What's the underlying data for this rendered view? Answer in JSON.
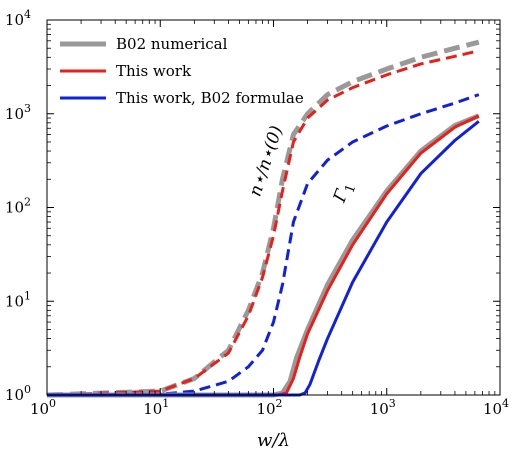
{
  "chart_data": {
    "type": "line",
    "xscale": "log",
    "yscale": "log",
    "xlim": [
      1,
      10000
    ],
    "ylim": [
      1,
      10000
    ],
    "xlabel": "w/λ",
    "ylabel": "",
    "grid": false,
    "legend_position": "top-left",
    "x_ticks": [
      {
        "value": 1,
        "base": "10",
        "exp": "0"
      },
      {
        "value": 10,
        "base": "10",
        "exp": "1"
      },
      {
        "value": 100,
        "base": "10",
        "exp": "2"
      },
      {
        "value": 1000,
        "base": "10",
        "exp": "3"
      },
      {
        "value": 10000,
        "base": "10",
        "exp": "4"
      }
    ],
    "y_ticks": [
      {
        "value": 1,
        "base": "10",
        "exp": "0"
      },
      {
        "value": 10,
        "base": "10",
        "exp": "1"
      },
      {
        "value": 100,
        "base": "10",
        "exp": "2"
      },
      {
        "value": 1000,
        "base": "10",
        "exp": "3"
      },
      {
        "value": 10000,
        "base": "10",
        "exp": "4"
      }
    ],
    "annotations": [
      {
        "text": "n⋆/n⋆(0)",
        "x": 95,
        "y": 300,
        "angle": -72
      },
      {
        "text": "Γ1",
        "x": 450,
        "y": 140,
        "angle": -70
      }
    ],
    "series": [
      {
        "name": "B02 numerical",
        "group": "n_star",
        "color": "#999999",
        "style": "dashed",
        "width": 5,
        "x": [
          1,
          10,
          20,
          40,
          60,
          80,
          100,
          120,
          150,
          200,
          300,
          500,
          1000,
          2000,
          4000,
          6500
        ],
        "y": [
          1,
          1.1,
          1.5,
          3,
          8,
          20,
          60,
          200,
          600,
          1000,
          1600,
          2200,
          3000,
          4000,
          5000,
          5800
        ]
      },
      {
        "name": "This work",
        "group": "n_star",
        "color": "#e8201a",
        "style": "dashed",
        "width": 3,
        "x": [
          1,
          10,
          20,
          40,
          60,
          80,
          100,
          120,
          150,
          200,
          300,
          500,
          1000,
          2000,
          4000,
          6500
        ],
        "y": [
          1,
          1.1,
          1.5,
          2.8,
          7,
          18,
          50,
          150,
          500,
          900,
          1400,
          1900,
          2600,
          3400,
          4100,
          4700
        ]
      },
      {
        "name": "This work, B02 formulae",
        "group": "n_star",
        "color": "#1020dd",
        "style": "dashed",
        "width": 3,
        "x": [
          1,
          10,
          20,
          40,
          60,
          80,
          100,
          120,
          150,
          200,
          300,
          500,
          1000,
          2000,
          4000,
          6500
        ],
        "y": [
          1,
          1.02,
          1.1,
          1.4,
          2,
          3,
          6,
          15,
          70,
          180,
          320,
          500,
          740,
          1000,
          1300,
          1600
        ]
      },
      {
        "name": "B02 numerical",
        "group": "gamma1",
        "color": "#999999",
        "style": "solid",
        "width": 5,
        "x": [
          1,
          100,
          120,
          140,
          160,
          200,
          300,
          500,
          1000,
          2000,
          4000,
          6500
        ],
        "y": [
          1,
          1,
          1.05,
          1.4,
          2.5,
          5,
          15,
          45,
          150,
          400,
          750,
          950
        ]
      },
      {
        "name": "This work",
        "group": "gamma1",
        "color": "#e8201a",
        "style": "solid",
        "width": 3,
        "x": [
          1,
          110,
          130,
          150,
          170,
          200,
          300,
          500,
          1000,
          2000,
          4000,
          6500
        ],
        "y": [
          1,
          1,
          1.05,
          1.5,
          2.5,
          4.5,
          13,
          40,
          140,
          380,
          720,
          950
        ]
      },
      {
        "name": "This work, B02 formulae",
        "group": "gamma1",
        "color": "#1020dd",
        "style": "solid",
        "width": 3,
        "x": [
          1,
          170,
          190,
          210,
          250,
          300,
          500,
          1000,
          2000,
          4000,
          6500
        ],
        "y": [
          1,
          1,
          1.05,
          1.3,
          2.3,
          4,
          16,
          70,
          230,
          520,
          830
        ]
      }
    ],
    "legend": [
      {
        "label": "B02 numerical",
        "color": "#999999",
        "width": 5
      },
      {
        "label": "This work",
        "color": "#e8201a",
        "width": 3
      },
      {
        "label": "This work, B02 formulae",
        "color": "#1020dd",
        "width": 3
      }
    ]
  }
}
